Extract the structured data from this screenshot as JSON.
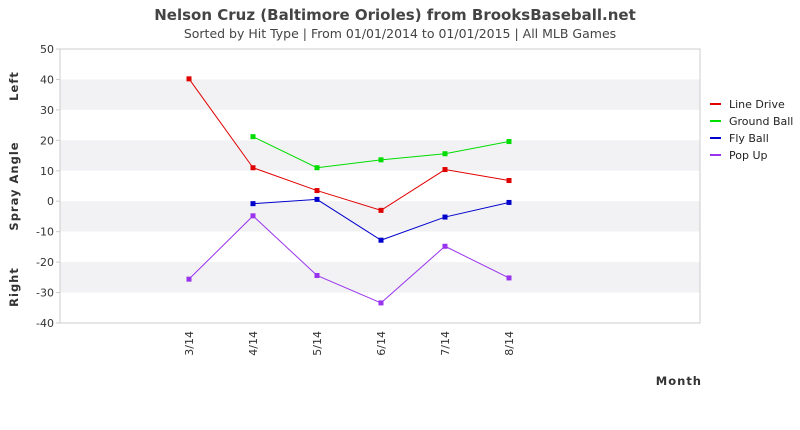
{
  "chart_data": {
    "type": "line",
    "title": "Nelson Cruz (Baltimore Orioles) from BrooksBaseball.net",
    "subtitle": "Sorted by Hit Type | From 01/01/2014 to 01/01/2015 | All MLB Games",
    "xlabel": "Month",
    "ylabel": "Spray Angle",
    "ylabel_top": "Left",
    "ylabel_bottom": "Right",
    "ylim": [
      -40,
      50
    ],
    "yticks": [
      50,
      40,
      30,
      20,
      10,
      0,
      -10,
      -20,
      -30,
      -40
    ],
    "categories": [
      "3/14",
      "4/14",
      "5/14",
      "6/14",
      "7/14",
      "8/14"
    ],
    "legend_position": "right",
    "grid": "alternating horizontal bands",
    "series": [
      {
        "name": "Line Drive",
        "color": "#e00000",
        "values": [
          40.2,
          11,
          3.5,
          -3,
          10.4,
          6.8
        ]
      },
      {
        "name": "Ground Ball",
        "color": "#00dd00",
        "values": [
          null,
          21.2,
          11,
          13.6,
          15.6,
          19.6
        ]
      },
      {
        "name": "Fly Ball",
        "color": "#0000cc",
        "values": [
          null,
          -0.8,
          0.6,
          -12.8,
          -5.2,
          -0.4
        ]
      },
      {
        "name": "Pop Up",
        "color": "#9933ee",
        "values": [
          -25.6,
          -4.8,
          -24.4,
          -33.4,
          -14.8,
          -25.2
        ]
      }
    ]
  }
}
